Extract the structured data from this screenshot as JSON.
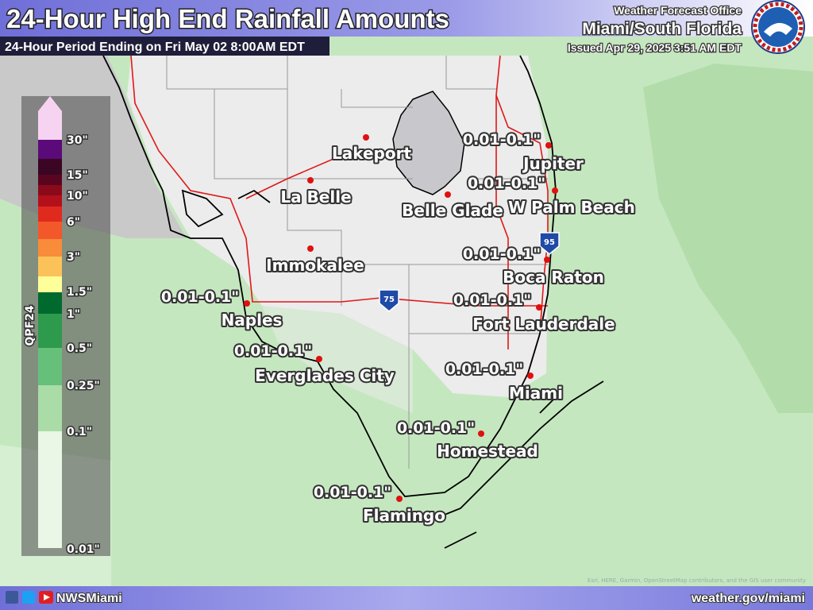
{
  "header": {
    "title": "24-Hour High End Rainfall Amounts",
    "subtitle": "24-Hour Period Ending on Fri May 02 8:00AM EDT",
    "office_line": "Weather Forecast Office",
    "office": "Miami/South Florida",
    "issued": "Issued Apr 29, 2025 3:51 AM EDT"
  },
  "legend": {
    "title": "QPF24",
    "labels": [
      "30\"",
      "15\"",
      "10\"",
      "6\"",
      "3\"",
      "1.5\"",
      "1\"",
      "0.5\"",
      "0.25\"",
      "0.1\"",
      "0.01\""
    ]
  },
  "places": [
    {
      "name": "Lakeport"
    },
    {
      "name": "La Belle"
    },
    {
      "name": "Belle Glade"
    },
    {
      "name": "Immokalee"
    },
    {
      "name": "Jupiter",
      "amount": "0.01-0.1\""
    },
    {
      "name": "W Palm Beach",
      "amount": "0.01-0.1\""
    },
    {
      "name": "Boca Raton",
      "amount": "0.01-0.1\""
    },
    {
      "name": "Fort Lauderdale",
      "amount": "0.01-0.1\""
    },
    {
      "name": "Naples",
      "amount": "0.01-0.1\""
    },
    {
      "name": "Everglades City",
      "amount": "0.01-0.1\""
    },
    {
      "name": "Miami",
      "amount": "0.01-0.1\""
    },
    {
      "name": "Homestead",
      "amount": "0.01-0.1\""
    },
    {
      "name": "Flamingo",
      "amount": "0.01-0.1\""
    }
  ],
  "highways": [
    "75",
    "95"
  ],
  "attribution": "Esri, HERE, Garmin, OpenStreetMap contributors, and the GIS user community",
  "footer": {
    "social": "NWSMiami",
    "url": "weather.gov/miami"
  }
}
